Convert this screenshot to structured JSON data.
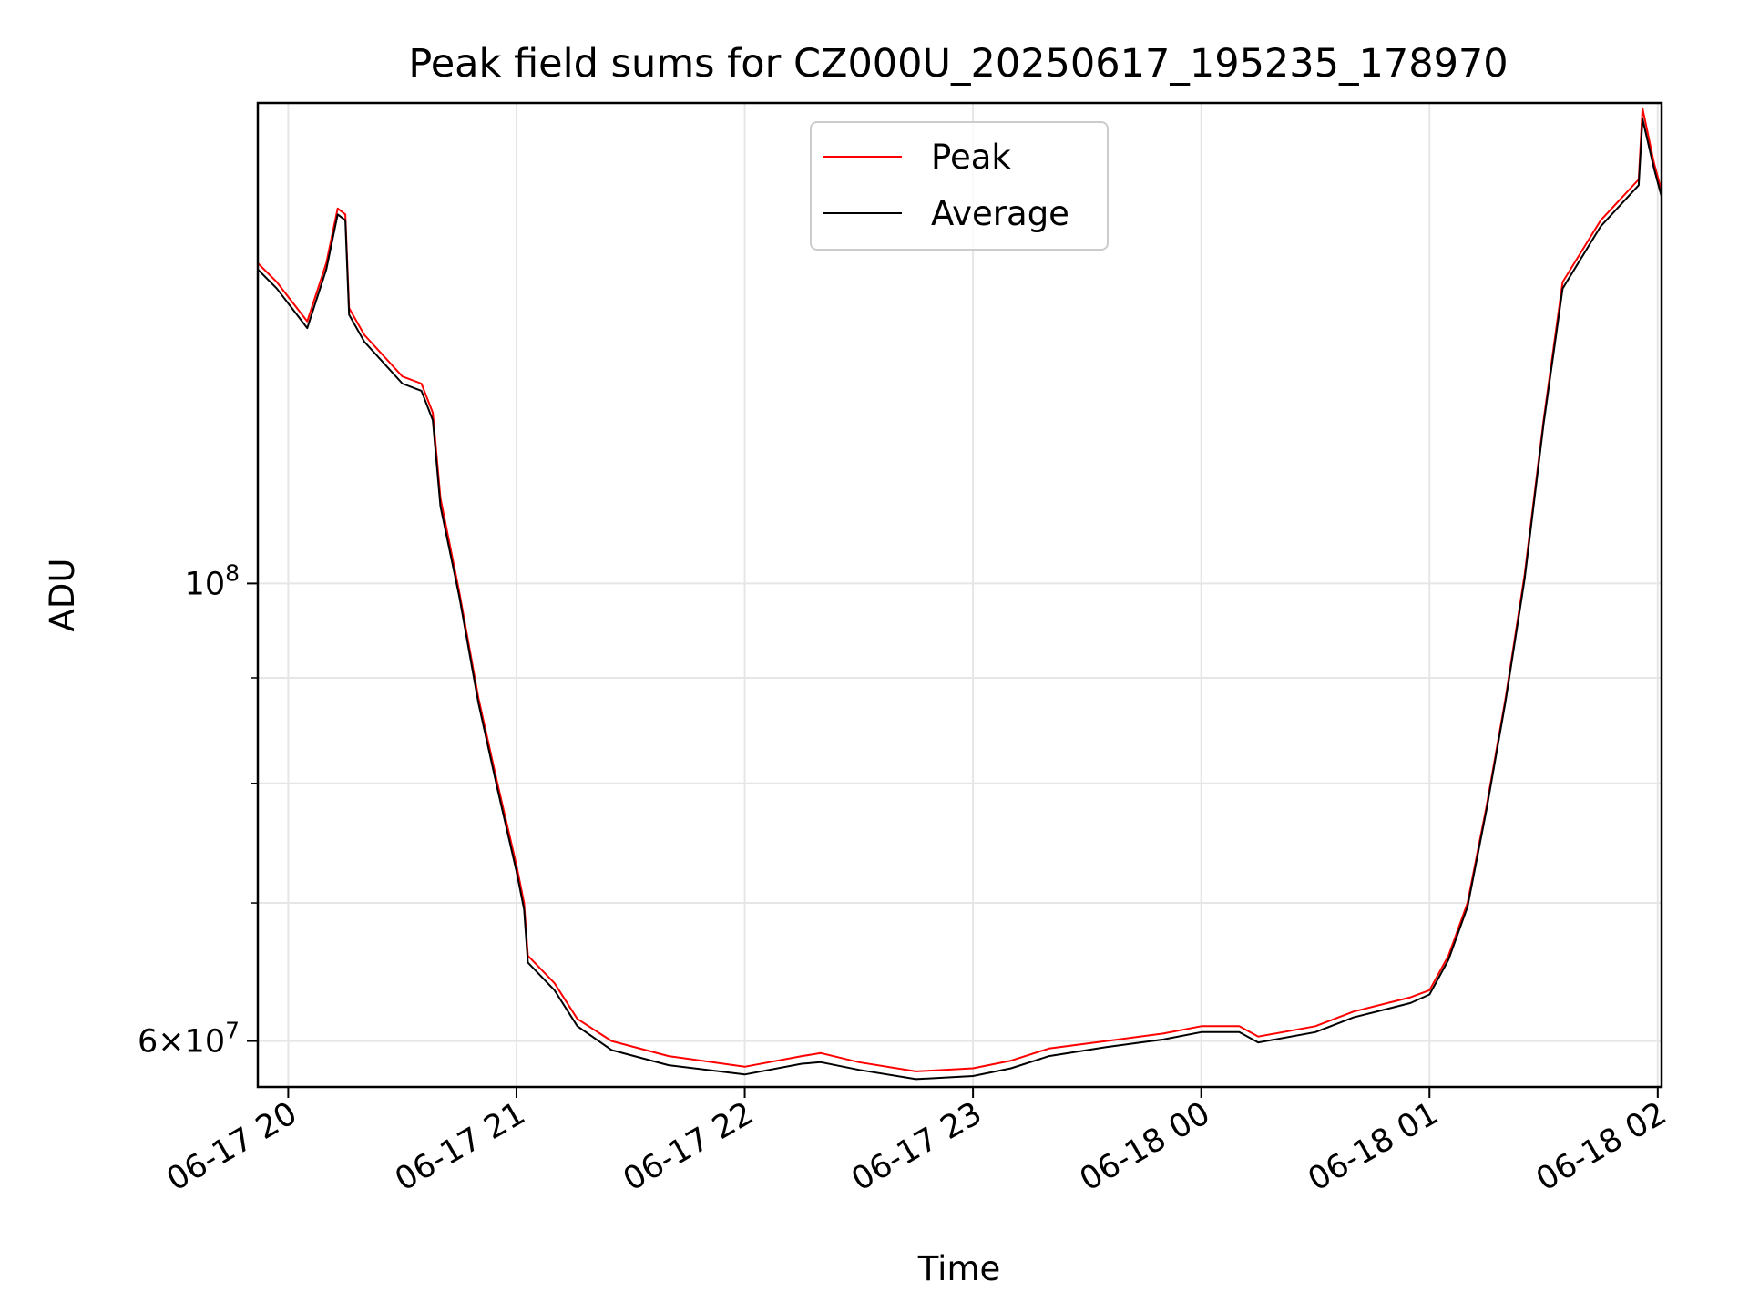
{
  "chart_data": {
    "type": "line",
    "title": "Peak field sums for CZ000U_20250617_195235_178970",
    "xlabel": "Time",
    "ylabel": "ADU",
    "x_scale": "time",
    "y_scale": "log",
    "xlim": [
      "06-17 19:52",
      "06-18 02:01"
    ],
    "ylim": [
      57000000,
      171000000
    ],
    "x_ticks": [
      {
        "value": "06-17 20:00",
        "label": "06-17 20"
      },
      {
        "value": "06-17 21:00",
        "label": "06-17 21"
      },
      {
        "value": "06-17 22:00",
        "label": "06-17 22"
      },
      {
        "value": "06-17 23:00",
        "label": "06-17 23"
      },
      {
        "value": "06-18 00:00",
        "label": "06-18 00"
      },
      {
        "value": "06-18 01:00",
        "label": "06-18 01"
      },
      {
        "value": "06-18 02:00",
        "label": "06-18 02"
      }
    ],
    "y_major_ticks": [
      {
        "value": 60000000,
        "label_coef": "6",
        "label_base": "10",
        "label_exp": "7"
      },
      {
        "value": 100000000,
        "label_coef": "",
        "label_base": "10",
        "label_exp": "8"
      }
    ],
    "y_minor_ticks": [
      70000000,
      80000000,
      90000000
    ],
    "grid": true,
    "legend": {
      "placement": "upper center",
      "entries": [
        "Peak",
        "Average"
      ]
    },
    "series": [
      {
        "name": "Peak",
        "color": "#ff0000",
        "x": [
          "06-17 19:52",
          "06-17 19:57",
          "06-17 20:05",
          "06-17 20:10",
          "06-17 20:13",
          "06-17 20:15",
          "06-17 20:16",
          "06-17 20:20",
          "06-17 20:30",
          "06-17 20:35",
          "06-17 20:38",
          "06-17 20:40",
          "06-17 20:45",
          "06-17 20:50",
          "06-17 20:55",
          "06-17 21:00",
          "06-17 21:02",
          "06-17 21:03",
          "06-17 21:10",
          "06-17 21:16",
          "06-17 21:25",
          "06-17 21:40",
          "06-17 22:00",
          "06-17 22:15",
          "06-17 22:20",
          "06-17 22:30",
          "06-17 22:45",
          "06-17 23:00",
          "06-17 23:10",
          "06-17 23:20",
          "06-17 23:35",
          "06-17 23:50",
          "06-18 00:00",
          "06-18 00:10",
          "06-18 00:15",
          "06-18 00:30",
          "06-18 00:40",
          "06-18 00:55",
          "06-18 01:00",
          "06-18 01:05",
          "06-18 01:10",
          "06-18 01:15",
          "06-18 01:20",
          "06-18 01:25",
          "06-18 01:30",
          "06-18 01:35",
          "06-18 01:45",
          "06-18 01:55",
          "06-18 01:56",
          "06-18 01:59",
          "06-18 02:01"
        ],
        "y": [
          143000000,
          140000000,
          134000000,
          143000000,
          152000000,
          151000000,
          136000000,
          132000000,
          126000000,
          125000000,
          121000000,
          110000000,
          99000000,
          88000000,
          80000000,
          73000000,
          70000000,
          66000000,
          64000000,
          61500000,
          60000000,
          59000000,
          58300000,
          59000000,
          59200000,
          58600000,
          58000000,
          58200000,
          58700000,
          59500000,
          60000000,
          60500000,
          61000000,
          61000000,
          60300000,
          61000000,
          62000000,
          63000000,
          63500000,
          66000000,
          70000000,
          78000000,
          88000000,
          101000000,
          120000000,
          140000000,
          150000000,
          157000000,
          170000000,
          160000000,
          155000000
        ]
      },
      {
        "name": "Average",
        "color": "#000000",
        "x": [
          "06-17 19:52",
          "06-17 19:57",
          "06-17 20:05",
          "06-17 20:10",
          "06-17 20:13",
          "06-17 20:15",
          "06-17 20:16",
          "06-17 20:20",
          "06-17 20:30",
          "06-17 20:35",
          "06-17 20:38",
          "06-17 20:40",
          "06-17 20:45",
          "06-17 20:50",
          "06-17 20:55",
          "06-17 21:00",
          "06-17 21:02",
          "06-17 21:03",
          "06-17 21:10",
          "06-17 21:16",
          "06-17 21:25",
          "06-17 21:40",
          "06-17 22:00",
          "06-17 22:15",
          "06-17 22:20",
          "06-17 22:30",
          "06-17 22:45",
          "06-17 23:00",
          "06-17 23:10",
          "06-17 23:20",
          "06-17 23:35",
          "06-17 23:50",
          "06-18 00:00",
          "06-18 00:10",
          "06-18 00:15",
          "06-18 00:30",
          "06-18 00:40",
          "06-18 00:55",
          "06-18 01:00",
          "06-18 01:05",
          "06-18 01:10",
          "06-18 01:15",
          "06-18 01:20",
          "06-18 01:25",
          "06-18 01:30",
          "06-18 01:35",
          "06-18 01:45",
          "06-18 01:55",
          "06-18 01:56",
          "06-18 01:59",
          "06-18 02:01"
        ],
        "y": [
          142000000,
          139000000,
          133000000,
          142000000,
          151000000,
          150000000,
          135000000,
          131000000,
          125000000,
          124000000,
          120000000,
          109000000,
          98500000,
          87500000,
          79500000,
          72500000,
          69500000,
          65500000,
          63500000,
          61000000,
          59400000,
          58400000,
          57800000,
          58500000,
          58600000,
          58100000,
          57500000,
          57700000,
          58200000,
          59000000,
          59600000,
          60100000,
          60600000,
          60600000,
          59900000,
          60600000,
          61600000,
          62600000,
          63200000,
          65700000,
          69700000,
          77700000,
          87700000,
          100500000,
          119500000,
          139000000,
          149000000,
          156000000,
          168000000,
          159000000,
          154000000
        ]
      }
    ]
  }
}
